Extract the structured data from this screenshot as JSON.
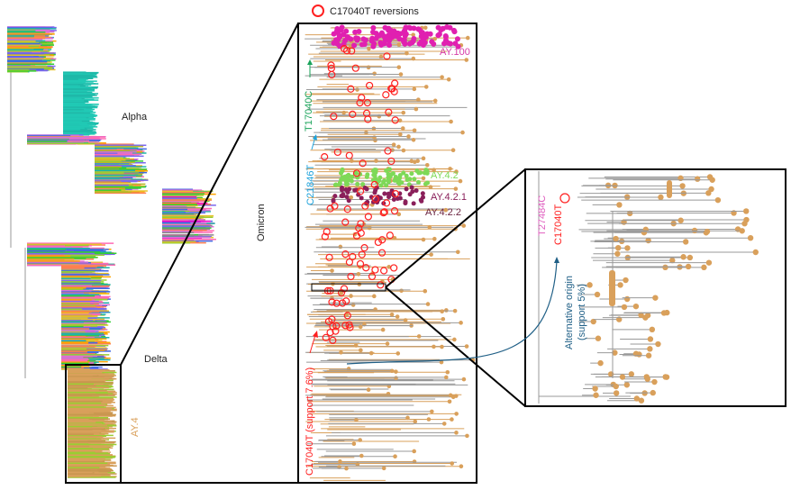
{
  "legend": {
    "label": "C17040T reversions",
    "marker_color": "#ff2020"
  },
  "overview_tree": {
    "clades": [
      {
        "label": "Alpha",
        "color": "#222222"
      },
      {
        "label": "Omicron",
        "color": "#222222"
      },
      {
        "label": "Delta",
        "color": "#222222"
      },
      {
        "label": "AY.4",
        "color": "#d9a05b"
      }
    ]
  },
  "middle_panel": {
    "lineages": [
      {
        "label": "AY.100",
        "color": "#d63aa8"
      },
      {
        "label": "AY.4.2",
        "color": "#7ed957"
      },
      {
        "label": "AY.4.2.1",
        "color": "#8a1f5a"
      },
      {
        "label": "AY.4.2.2",
        "color": "#6a2340"
      }
    ],
    "mutations": [
      {
        "label": "T17040C",
        "color": "#1aa35a"
      },
      {
        "label": "C21846T",
        "color": "#1fa3dc"
      },
      {
        "label": "C17040T (support 7.6%)",
        "color": "#ff2020"
      }
    ]
  },
  "right_panel": {
    "mutations": [
      {
        "label": "T27484C",
        "color": "#e060c0"
      },
      {
        "label": "C17040T",
        "color": "#ff2020"
      }
    ],
    "annotation": {
      "label_line1": "Alternative origin",
      "label_line2": "(support 5%)",
      "color": "#1f5f86"
    }
  },
  "colors": {
    "tip": "#d9a05b",
    "branch": "#999999"
  }
}
